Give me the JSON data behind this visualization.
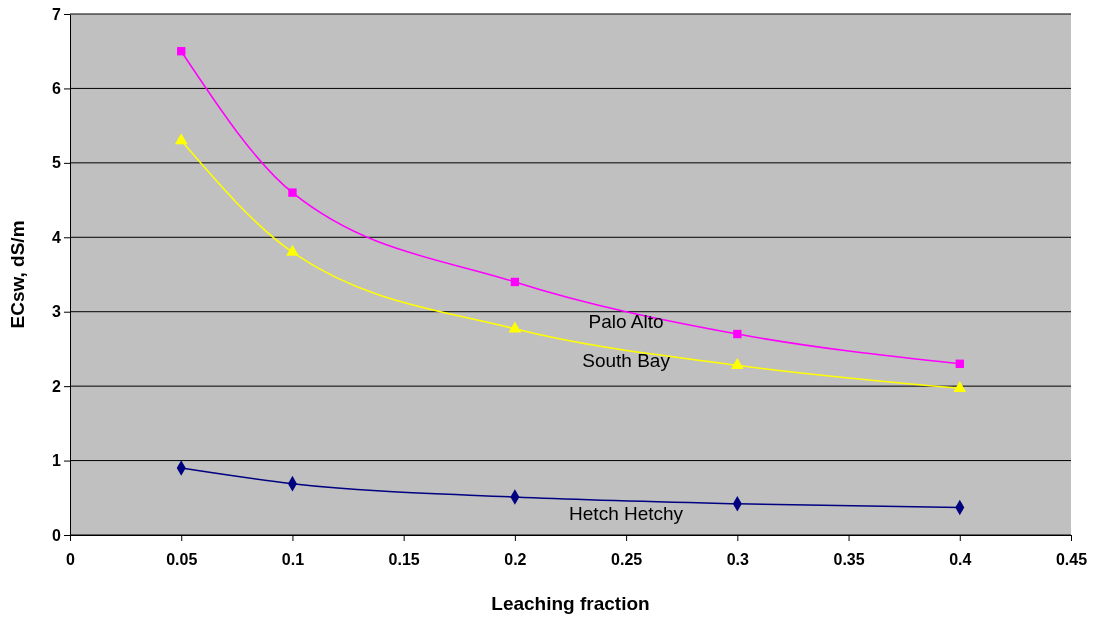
{
  "chart_data": {
    "type": "line",
    "xlabel": "Leaching fraction",
    "ylabel": "ECsw, dS/m",
    "x": [
      0.05,
      0.1,
      0.2,
      0.3,
      0.4
    ],
    "series": [
      {
        "name": "Hetch Hetchy",
        "color": "#000080",
        "marker": "diamond",
        "values": [
          0.9,
          0.69,
          0.51,
          0.42,
          0.37
        ]
      },
      {
        "name": "Palo Alto",
        "color": "#ff00ff",
        "marker": "square",
        "values": [
          6.5,
          4.6,
          3.4,
          2.7,
          2.3
        ]
      },
      {
        "name": "South Bay",
        "color": "#ffff00",
        "marker": "triangle",
        "values": [
          5.3,
          3.8,
          2.77,
          2.28,
          1.97
        ]
      }
    ],
    "xlim": [
      0,
      0.45
    ],
    "xticks": [
      0,
      0.05,
      0.1,
      0.15,
      0.2,
      0.25,
      0.3,
      0.35,
      0.4,
      0.45
    ],
    "ylim": [
      0,
      7
    ],
    "yticks": [
      0,
      1,
      2,
      3,
      4,
      5,
      6,
      7
    ],
    "grid": "y"
  }
}
